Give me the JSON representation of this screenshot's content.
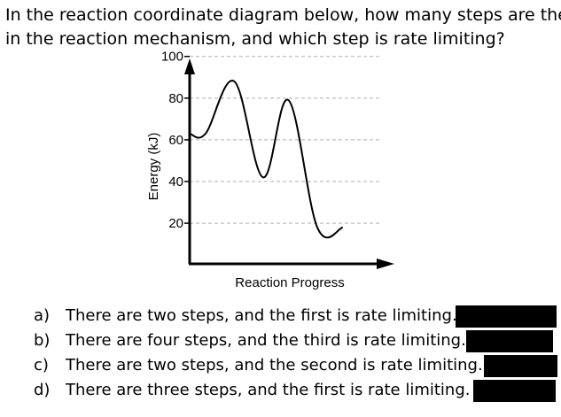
{
  "question": {
    "line1": "In the reaction coordinate diagram below, how many steps are there",
    "line2": "in the reaction mechanism, and which step is rate limiting?"
  },
  "chart_data": {
    "type": "line",
    "xlabel": "Reaction Progress",
    "ylabel": "Energy (kJ)",
    "yticks": [
      20,
      40,
      60,
      80,
      100
    ],
    "ylim": [
      0,
      110
    ],
    "grid": "dashed horizontal",
    "x": [
      0,
      0.05,
      0.14,
      0.23,
      0.31,
      0.4,
      0.48
    ],
    "y": [
      63,
      63,
      88,
      42,
      79,
      18,
      18
    ]
  },
  "options": [
    {
      "letter": "a)",
      "text": "There are two steps, and the first is rate limiting."
    },
    {
      "letter": "b)",
      "text": "There are four steps, and the third is rate limiting."
    },
    {
      "letter": "c)",
      "text": "There are two steps, and the second is rate limiting."
    },
    {
      "letter": "d)",
      "text": "There are three steps, and the first is rate limiting."
    }
  ]
}
